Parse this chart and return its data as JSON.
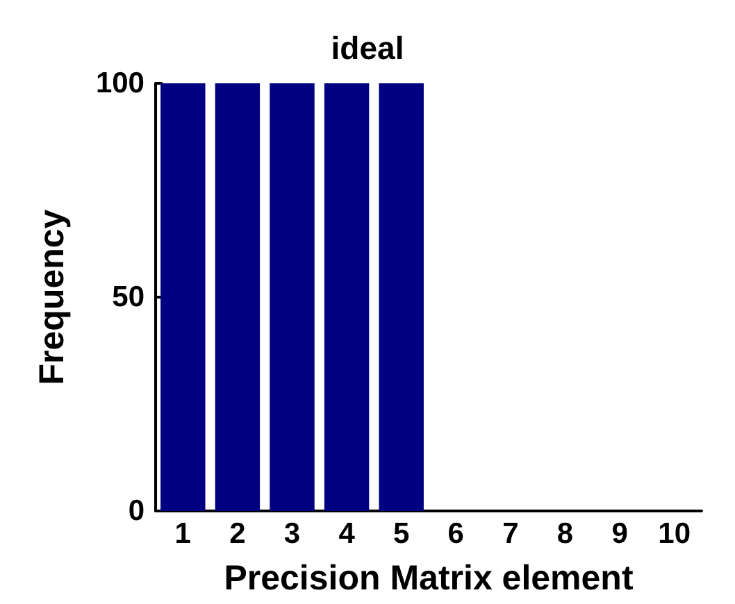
{
  "chart_data": {
    "type": "bar",
    "title": "ideal",
    "xlabel": "Precision Matrix element",
    "ylabel": "Frequency",
    "categories": [
      "1",
      "2",
      "3",
      "4",
      "5",
      "6",
      "7",
      "8",
      "9",
      "10"
    ],
    "values": [
      100,
      100,
      100,
      100,
      100,
      0,
      0,
      0,
      0,
      0
    ],
    "color": "#000080",
    "ylim": [
      0,
      100
    ],
    "yticks": [
      0,
      50,
      100
    ],
    "grid": false
  }
}
